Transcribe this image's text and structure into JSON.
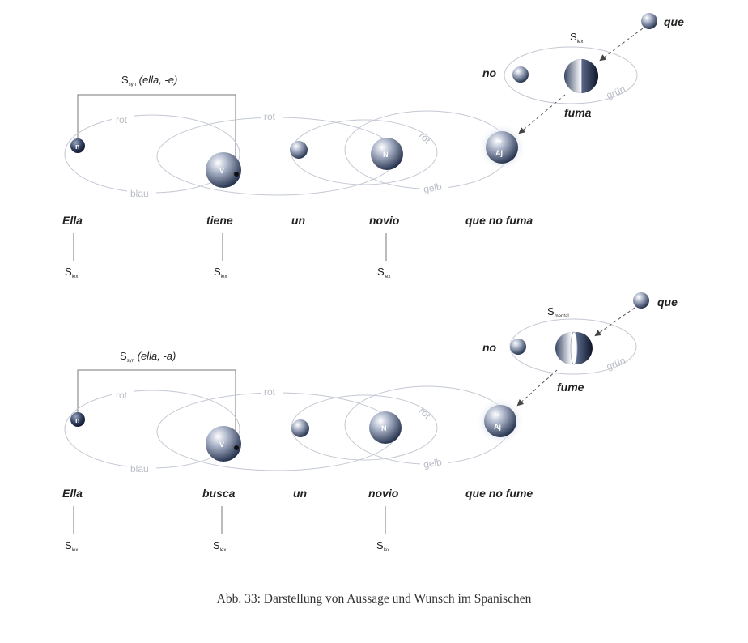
{
  "diagrams": [
    {
      "syn_label": "S",
      "syn_sub": "syn",
      "syn_args": " (ella, -e)",
      "top_label": "S",
      "top_sub": "lex",
      "words": {
        "ella": "Ella",
        "verb": "tiene",
        "un": "un",
        "novio": "novio",
        "rel": "que no fuma"
      },
      "floating": {
        "que": "que",
        "no": "no",
        "verb": "fuma"
      },
      "orbits": {
        "rot1": "rot",
        "rot2": "rot",
        "rot3": "rot",
        "blau": "blau",
        "gelb": "gelb",
        "gruen": "grün"
      },
      "sphere_labels": {
        "n": "n",
        "v": "V",
        "N": "N",
        "aj_top": "*",
        "aj": "Aj"
      },
      "slex": [
        "S",
        "S",
        "S"
      ],
      "slex_sub": "lex"
    },
    {
      "syn_label": "S",
      "syn_sub": "syn",
      "syn_args": " (ella, -a)",
      "top_label": "S",
      "top_sub": "mental",
      "words": {
        "ella": "Ella",
        "verb": "busca",
        "un": "un",
        "novio": "novio",
        "rel": "que no fume"
      },
      "floating": {
        "que": "que",
        "no": "no",
        "verb": "fume"
      },
      "orbits": {
        "rot1": "rot",
        "rot2": "rot",
        "rot3": "rot",
        "blau": "blau",
        "gelb": "gelb",
        "gruen": "grün"
      },
      "sphere_labels": {
        "n": "n",
        "v": "V",
        "N": "N",
        "aj_top": "*",
        "aj": "Aj"
      },
      "slex": [
        "S",
        "S",
        "S"
      ],
      "slex_sub": "lex"
    }
  ],
  "caption": "Abb. 33: Darstellung von Aussage und Wunsch im Spanischen"
}
